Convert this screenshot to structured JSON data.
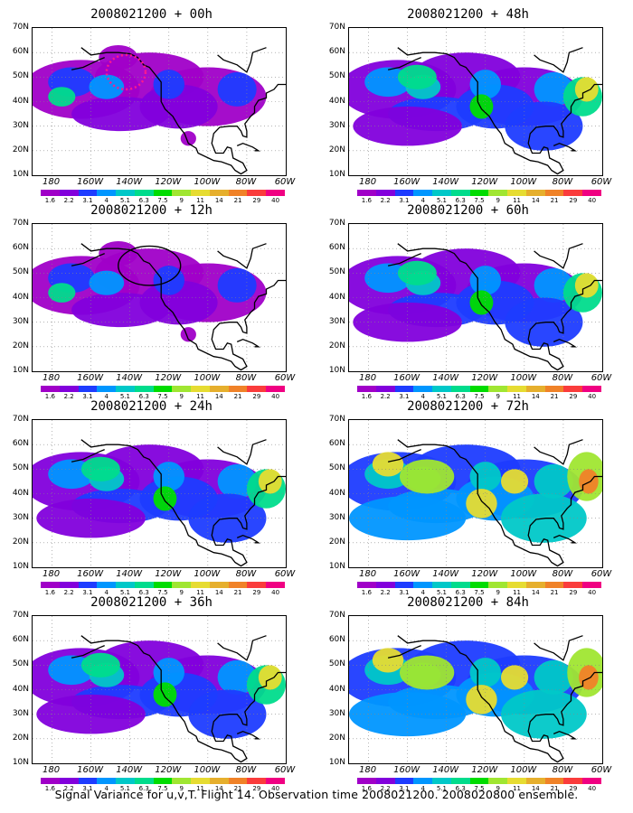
{
  "panels": [
    {
      "title": "2008021200 + 00h",
      "level": 1,
      "marker": "dots"
    },
    {
      "title": "2008021200 + 48h",
      "level": 2
    },
    {
      "title": "2008021200 + 12h",
      "level": 1,
      "marker": "circle"
    },
    {
      "title": "2008021200 + 60h",
      "level": 2
    },
    {
      "title": "2008021200 + 24h",
      "level": 2
    },
    {
      "title": "2008021200 + 72h",
      "level": 3
    },
    {
      "title": "2008021200 + 36h",
      "level": 2
    },
    {
      "title": "2008021200 + 84h",
      "level": 3
    }
  ],
  "lat_labels": [
    "70N",
    "60N",
    "50N",
    "40N",
    "30N",
    "20N",
    "10N"
  ],
  "lon_labels": [
    "180",
    "160W",
    "140W",
    "120W",
    "100W",
    "80W",
    "60W"
  ],
  "colorbar": {
    "labels": [
      "1.6",
      "2.2",
      "3.1",
      "4",
      "5.1",
      "6.3",
      "7.5",
      "9",
      "11",
      "14",
      "21",
      "29",
      "40"
    ],
    "colors": [
      "#a000c8",
      "#8200dc",
      "#1e3cff",
      "#0096ff",
      "#00c8c8",
      "#00dc8c",
      "#00dc00",
      "#a0e632",
      "#e6dc32",
      "#e6af2d",
      "#f08228",
      "#fa3c3c",
      "#f00082"
    ]
  },
  "caption": "Signal Variance for u,v,T. Flight 14. Observation time 2008021200. 2008020800 ensemble."
}
